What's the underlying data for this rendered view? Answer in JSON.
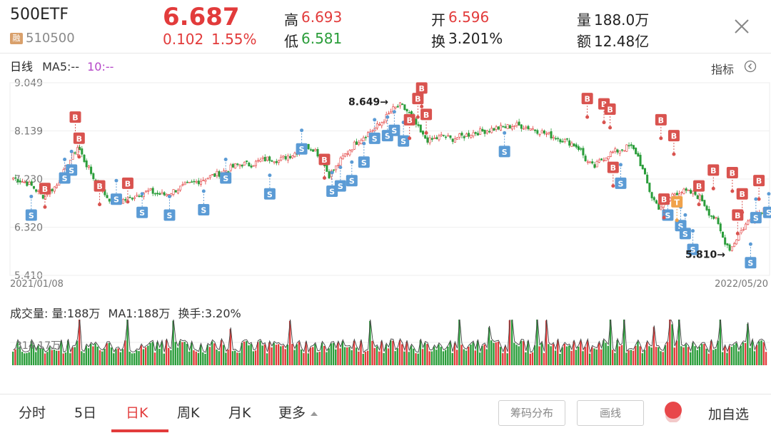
{
  "header": {
    "name": "500ETF",
    "badge": "融",
    "code": "510500",
    "price": "6.687",
    "change": "0.102",
    "change_pct": "1.55%",
    "high_label": "高",
    "high": "6.693",
    "low_label": "低",
    "low": "6.581",
    "open_label": "开",
    "open": "6.596",
    "turnover_label": "换",
    "turnover": "3.201%",
    "volume_label": "量",
    "volume": "188.0万",
    "amount_label": "额",
    "amount": "12.48亿"
  },
  "ma_row": {
    "period": "日线",
    "ma5": "MA5:--",
    "ma10": "10:--",
    "indicator_button": "指标"
  },
  "volume_row": {
    "label": "成交量:",
    "vol": "量:188万",
    "ma1": "MA1:188万",
    "turnover": "换手:3.20%",
    "tick": "314.17万"
  },
  "chart_data": {
    "type": "candlestick",
    "y_ticks": [
      "9.049",
      "8.139",
      "7.230",
      "6.320",
      "5.410"
    ],
    "ylim": [
      5.41,
      9.049
    ],
    "x_start": "2021/01/08",
    "x_end": "2022/05/20",
    "annotations": {
      "max": "8.649→",
      "min": "5.810→"
    },
    "close_path": [
      7.25,
      7.2,
      7.15,
      7.05,
      6.9,
      7.0,
      7.1,
      7.35,
      7.6,
      7.85,
      7.55,
      7.3,
      7.1,
      6.9,
      6.8,
      6.82,
      6.85,
      6.92,
      6.97,
      7.0,
      6.95,
      6.93,
      6.98,
      7.05,
      7.1,
      7.15,
      7.2,
      7.25,
      7.3,
      7.35,
      7.42,
      7.48,
      7.52,
      7.5,
      7.55,
      7.6,
      7.62,
      7.58,
      7.65,
      7.7,
      7.78,
      7.85,
      7.8,
      7.6,
      7.3,
      7.45,
      7.65,
      7.8,
      7.95,
      8.05,
      8.15,
      8.25,
      8.4,
      8.55,
      8.62,
      8.5,
      8.3,
      8.05,
      7.95,
      8.0,
      8.05,
      7.98,
      8.02,
      8.05,
      8.1,
      8.12,
      8.15,
      8.18,
      8.2,
      8.22,
      8.25,
      8.23,
      8.2,
      8.15,
      8.1,
      8.05,
      8.0,
      7.95,
      7.9,
      7.8,
      7.55,
      7.45,
      7.6,
      7.7,
      7.75,
      7.8,
      7.85,
      7.7,
      7.3,
      6.9,
      6.7,
      6.75,
      6.95,
      7.0,
      6.98,
      6.95,
      6.85,
      6.6,
      6.45,
      6.1,
      5.9,
      6.15,
      6.35,
      6.5,
      6.6,
      6.7
    ],
    "markers": [
      {
        "type": "S",
        "x_frac": 0.028,
        "price": 6.9
      },
      {
        "type": "B",
        "x_frac": 0.046,
        "price": 6.7
      },
      {
        "type": "S",
        "x_frac": 0.072,
        "price": 7.6
      },
      {
        "type": "S",
        "x_frac": 0.081,
        "price": 7.75
      },
      {
        "type": "B",
        "x_frac": 0.086,
        "price": 8.05
      },
      {
        "type": "B",
        "x_frac": 0.091,
        "price": 7.65
      },
      {
        "type": "B",
        "x_frac": 0.118,
        "price": 6.75
      },
      {
        "type": "S",
        "x_frac": 0.14,
        "price": 7.2
      },
      {
        "type": "B",
        "x_frac": 0.155,
        "price": 6.8
      },
      {
        "type": "S",
        "x_frac": 0.174,
        "price": 6.95
      },
      {
        "type": "S",
        "x_frac": 0.21,
        "price": 6.9
      },
      {
        "type": "S",
        "x_frac": 0.255,
        "price": 7.0
      },
      {
        "type": "S",
        "x_frac": 0.284,
        "price": 7.6
      },
      {
        "type": "S",
        "x_frac": 0.342,
        "price": 7.3
      },
      {
        "type": "S",
        "x_frac": 0.384,
        "price": 8.15
      },
      {
        "type": "B",
        "x_frac": 0.414,
        "price": 7.25
      },
      {
        "type": "S",
        "x_frac": 0.424,
        "price": 7.35
      },
      {
        "type": "S",
        "x_frac": 0.435,
        "price": 7.45
      },
      {
        "type": "S",
        "x_frac": 0.45,
        "price": 7.55
      },
      {
        "type": "S",
        "x_frac": 0.466,
        "price": 7.9
      },
      {
        "type": "S",
        "x_frac": 0.48,
        "price": 8.35
      },
      {
        "type": "S",
        "x_frac": 0.497,
        "price": 8.4
      },
      {
        "type": "S",
        "x_frac": 0.506,
        "price": 8.5
      },
      {
        "type": "S",
        "x_frac": 0.518,
        "price": 8.3
      },
      {
        "type": "B",
        "x_frac": 0.526,
        "price": 8.0
      },
      {
        "type": "B",
        "x_frac": 0.537,
        "price": 8.4
      },
      {
        "type": "B",
        "x_frac": 0.542,
        "price": 8.6
      },
      {
        "type": "B",
        "x_frac": 0.548,
        "price": 8.1
      },
      {
        "type": "S",
        "x_frac": 0.651,
        "price": 8.1
      },
      {
        "type": "B",
        "x_frac": 0.76,
        "price": 8.4
      },
      {
        "type": "B",
        "x_frac": 0.782,
        "price": 8.3
      },
      {
        "type": "B",
        "x_frac": 0.79,
        "price": 8.2
      },
      {
        "type": "S",
        "x_frac": 0.804,
        "price": 7.5
      },
      {
        "type": "B",
        "x_frac": 0.794,
        "price": 7.1
      },
      {
        "type": "B",
        "x_frac": 0.857,
        "price": 8.0
      },
      {
        "type": "B",
        "x_frac": 0.874,
        "price": 7.7
      },
      {
        "type": "S",
        "x_frac": 0.866,
        "price": 6.9
      },
      {
        "type": "B",
        "x_frac": 0.861,
        "price": 6.5
      },
      {
        "type": "S",
        "x_frac": 0.883,
        "price": 6.7
      },
      {
        "type": "T",
        "x_frac": 0.878,
        "price": 6.45
      },
      {
        "type": "S",
        "x_frac": 0.899,
        "price": 6.25
      },
      {
        "type": "B",
        "x_frac": 0.907,
        "price": 6.75
      },
      {
        "type": "B",
        "x_frac": 0.926,
        "price": 7.05
      },
      {
        "type": "S",
        "x_frac": 0.889,
        "price": 6.55
      },
      {
        "type": "B",
        "x_frac": 0.951,
        "price": 7.0
      },
      {
        "type": "B",
        "x_frac": 0.964,
        "price": 6.6
      },
      {
        "type": "B",
        "x_frac": 0.958,
        "price": 6.2
      },
      {
        "type": "S",
        "x_frac": 0.975,
        "price": 6.0
      },
      {
        "type": "B",
        "x_frac": 0.986,
        "price": 6.85
      },
      {
        "type": "S",
        "x_frac": 0.982,
        "price": 6.85
      },
      {
        "type": "S",
        "x_frac": 0.999,
        "price": 6.95
      }
    ]
  },
  "tabs": {
    "t1": "分时",
    "t2": "5日",
    "t3": "日K",
    "t4": "周K",
    "t5": "月K",
    "t6": "更多"
  },
  "buttons": {
    "chips": "筹码分布",
    "draw": "画线",
    "add_watch": "加自选"
  },
  "colors": {
    "up": "#e23b3b",
    "down": "#2a9d3a",
    "sell_marker": "#5b9bd5",
    "buy_marker": "#d9534f",
    "t_marker": "#f0a24b"
  }
}
